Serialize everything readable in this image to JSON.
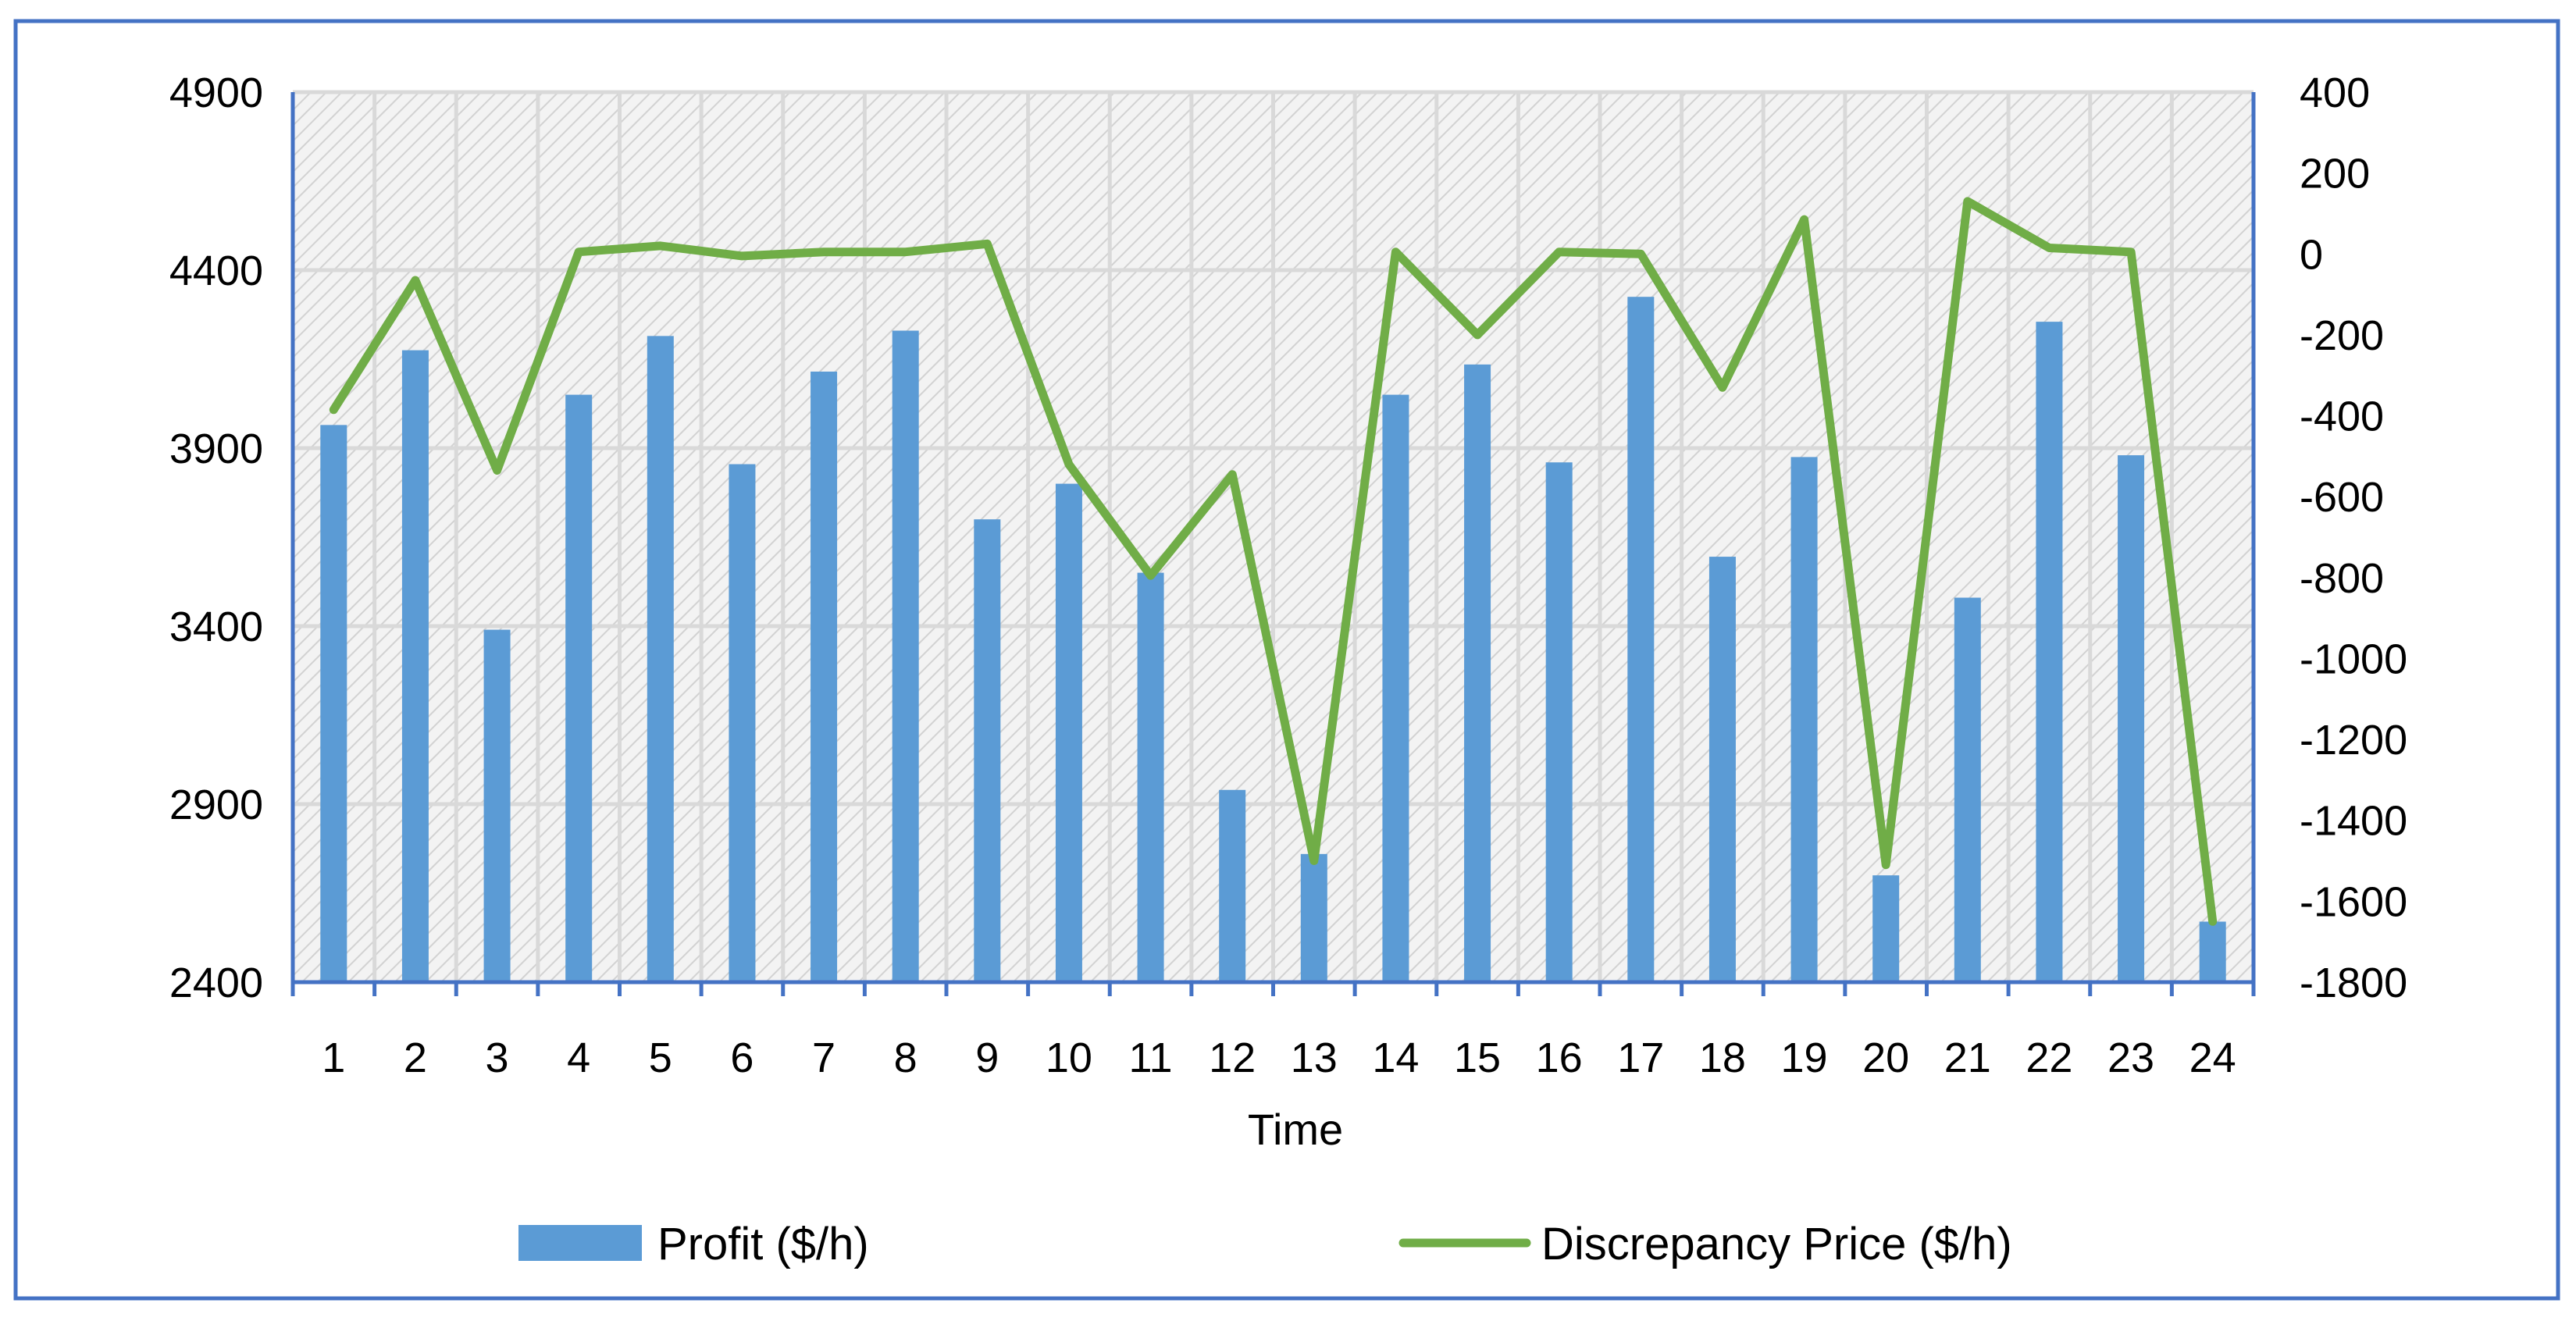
{
  "chart_data": {
    "type": "bar",
    "title": "",
    "xlabel": "Time",
    "ylabel_left": "",
    "ylabel_right": "",
    "categories": [
      "1",
      "2",
      "3",
      "4",
      "5",
      "6",
      "7",
      "8",
      "9",
      "10",
      "11",
      "12",
      "13",
      "14",
      "15",
      "16",
      "17",
      "18",
      "19",
      "20",
      "21",
      "22",
      "23",
      "24"
    ],
    "y_left_range": [
      2400,
      4900
    ],
    "y_left_ticks": [
      "2400",
      "2900",
      "3400",
      "3900",
      "4400",
      "4900"
    ],
    "y_right_range": [
      -1800,
      400
    ],
    "y_right_ticks": [
      "-1800",
      "-1600",
      "-1400",
      "-1200",
      "-1000",
      "-800",
      "-600",
      "-400",
      "-200",
      "0",
      "200",
      "400"
    ],
    "grid": true,
    "legend_position": "bottom",
    "series": [
      {
        "name": "Profit ($/h)",
        "type": "bar",
        "axis": "left",
        "color": "#5B9BD5",
        "values": [
          3965,
          4175,
          3390,
          4050,
          4215,
          3855,
          4115,
          4230,
          3700,
          3800,
          3550,
          2940,
          2760,
          4050,
          4135,
          3860,
          4325,
          3595,
          3875,
          2700,
          3480,
          4255,
          3880,
          2570
        ]
      },
      {
        "name": "Discrepancy Price ($/h)",
        "type": "line",
        "axis": "right",
        "color": "#70AD47",
        "values": [
          -385,
          -65,
          -535,
          5,
          20,
          -5,
          5,
          5,
          25,
          -520,
          -795,
          -545,
          -1500,
          5,
          -200,
          5,
          0,
          -330,
          85,
          -1510,
          130,
          15,
          5,
          -1650
        ]
      }
    ]
  }
}
